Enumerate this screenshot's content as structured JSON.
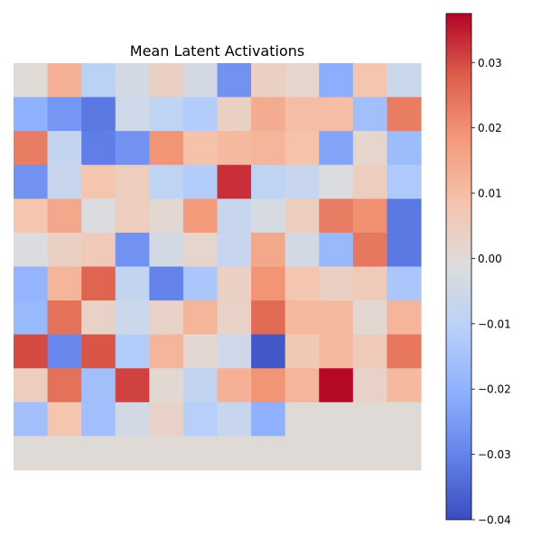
{
  "chart_data": {
    "type": "heatmap",
    "title": "Mean Latent Activations",
    "rows": 12,
    "cols": 12,
    "values": [
      [
        0.0,
        0.013,
        -0.01,
        -0.004,
        0.004,
        -0.004,
        -0.027,
        0.004,
        0.002,
        -0.021,
        0.008,
        -0.006
      ],
      [
        -0.02,
        -0.026,
        -0.032,
        -0.005,
        -0.009,
        -0.012,
        0.004,
        0.014,
        0.01,
        0.01,
        -0.016,
        0.023
      ],
      [
        0.023,
        -0.008,
        -0.031,
        -0.027,
        0.019,
        0.009,
        0.011,
        0.012,
        0.009,
        -0.023,
        0.002,
        -0.017
      ],
      [
        -0.027,
        -0.007,
        0.008,
        0.005,
        -0.009,
        -0.012,
        0.033,
        -0.009,
        -0.007,
        -0.002,
        0.005,
        -0.013
      ],
      [
        0.008,
        0.015,
        -0.002,
        0.005,
        0.001,
        0.018,
        -0.007,
        -0.003,
        0.005,
        0.023,
        0.02,
        -0.032
      ],
      [
        -0.002,
        0.004,
        0.006,
        -0.027,
        -0.004,
        0.002,
        -0.007,
        0.015,
        -0.004,
        -0.018,
        0.024,
        -0.032
      ],
      [
        -0.019,
        0.012,
        0.027,
        -0.008,
        -0.03,
        -0.014,
        0.004,
        0.019,
        0.008,
        0.004,
        0.006,
        -0.014
      ],
      [
        -0.018,
        0.025,
        0.003,
        -0.006,
        0.003,
        0.012,
        0.003,
        0.026,
        0.011,
        0.011,
        0.001,
        0.012
      ],
      [
        0.03,
        -0.029,
        0.029,
        -0.012,
        0.012,
        0.001,
        -0.005,
        -0.038,
        0.007,
        0.011,
        0.006,
        0.024
      ],
      [
        0.005,
        0.025,
        -0.016,
        0.031,
        0.001,
        -0.008,
        0.013,
        0.019,
        0.012,
        0.037,
        0.003,
        0.011
      ],
      [
        -0.016,
        0.008,
        -0.016,
        -0.004,
        0.003,
        -0.011,
        -0.007,
        -0.02,
        0.0,
        0.0,
        0.0,
        0.0
      ],
      [
        0.0,
        0.0,
        0.0,
        0.0,
        0.0,
        0.0,
        0.0,
        0.0,
        0.0,
        0.0,
        0.0,
        0.0
      ]
    ],
    "colormap": "coolwarm",
    "vmin": -0.04,
    "vmax": 0.0375,
    "colorbar_ticks": [
      0.03,
      0.02,
      0.01,
      0.0,
      -0.01,
      -0.02,
      -0.03,
      -0.04
    ],
    "colorbar_tick_labels": [
      "0.03",
      "0.02",
      "0.01",
      "0.00",
      "−0.01",
      "−0.02",
      "−0.03",
      "−0.04"
    ],
    "grid": false,
    "axes_visible": false
  }
}
